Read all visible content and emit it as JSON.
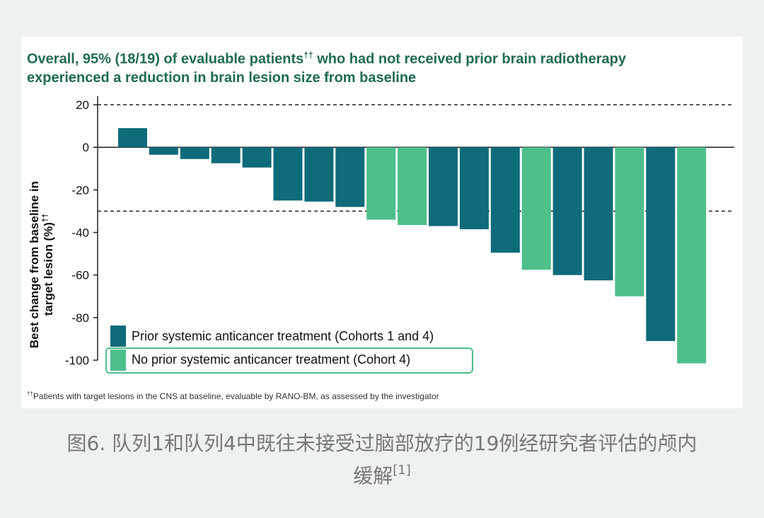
{
  "chart_data": {
    "type": "bar",
    "title_line1": "Overall, 95% (18/19) of evaluable patients",
    "title_line1_sup": "††",
    "title_line1_rest": " who had not received prior brain radiotherapy",
    "title_line2": "experienced a reduction in brain lesion size from baseline",
    "ylabel_line1": "Best change from baseline in",
    "ylabel_line2": "target lesion (%)",
    "ylabel_sup": "††",
    "ylim": [
      -100,
      20
    ],
    "yticks": [
      "20",
      "0",
      "-20",
      "-40",
      "-60",
      "-80",
      "-100"
    ],
    "ytick_values": [
      20,
      0,
      -20,
      -40,
      -60,
      -80,
      -100
    ],
    "reference_lines": [
      20,
      -30
    ],
    "series": [
      {
        "name": "Prior systemic anticancer treatment (Cohorts 1 and 4)",
        "color": "#0e6b7a"
      },
      {
        "name": "No prior systemic anticancer treatment (Cohort 4)",
        "color": "#4dbf8a"
      }
    ],
    "values": [
      9,
      -3.5,
      -5.5,
      -7.5,
      -9.5,
      -25,
      -25.5,
      -28,
      -34,
      -36.5,
      -37,
      -38.5,
      -49.5,
      -57.5,
      -60,
      -62.5,
      -70,
      -91,
      -101.5
    ],
    "groups": [
      0,
      0,
      0,
      0,
      0,
      0,
      0,
      0,
      1,
      1,
      0,
      0,
      0,
      1,
      0,
      0,
      1,
      0,
      1
    ]
  },
  "footnote_sup": "††",
  "footnote": "Patients with target lesions in the CNS at baseline, evaluable by RANO-BM, as assessed by the investigator",
  "caption": {
    "line1": "图6. 队列1和队列4中既往未接受过脑部放疗的19例经研究者评估的颅内",
    "line2": "缓解",
    "ref": "[1]"
  }
}
